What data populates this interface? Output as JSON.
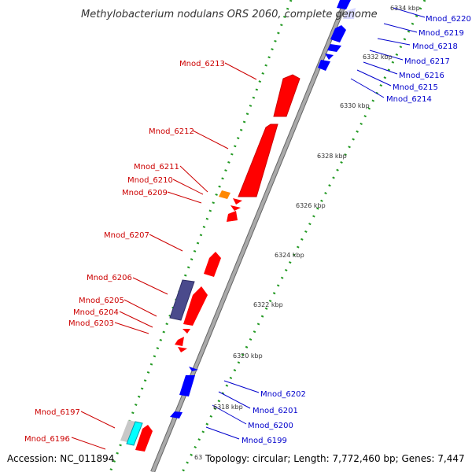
{
  "title": "Methylobacterium nodulans ORS 2060, complete genome",
  "footer": {
    "accession": "Accession: NC_011894",
    "topology": "Topology: circular; Length: 7,772,460 bp; Genes: 7,447"
  },
  "ticks": [
    "6334 kbp",
    "6332 kbp",
    "6330 kbp",
    "6328 kbp",
    "6326 kbp",
    "6324 kbp",
    "6322 kbp",
    "6320 kbp",
    "6318 kbp",
    "63"
  ],
  "left_labels": [
    "Mnod_6213",
    "Mnod_6212",
    "Mnod_6211",
    "Mnod_6210",
    "Mnod_6209",
    "Mnod_6207",
    "Mnod_6206",
    "Mnod_6205",
    "Mnod_6204",
    "Mnod_6203",
    "Mnod_6197",
    "Mnod_6196"
  ],
  "right_labels": [
    "Mnod_6220",
    "Mnod_6219",
    "Mnod_6218",
    "Mnod_6217",
    "Mnod_6216",
    "Mnod_6215",
    "Mnod_6214",
    "Mnod_6202",
    "Mnod_6201",
    "Mnod_6200",
    "Mnod_6199"
  ],
  "colors": {
    "forward_strand": "#ff0000",
    "reverse_strand": "#0000ff",
    "backbone": "#999999",
    "gc_dots": "#229922",
    "label_left": "#cc0000",
    "label_right": "#0000cc",
    "rna_orange": "#ff8800",
    "indigo_feature": "#4a4a8c",
    "cyan_feature": "#00ffff"
  }
}
